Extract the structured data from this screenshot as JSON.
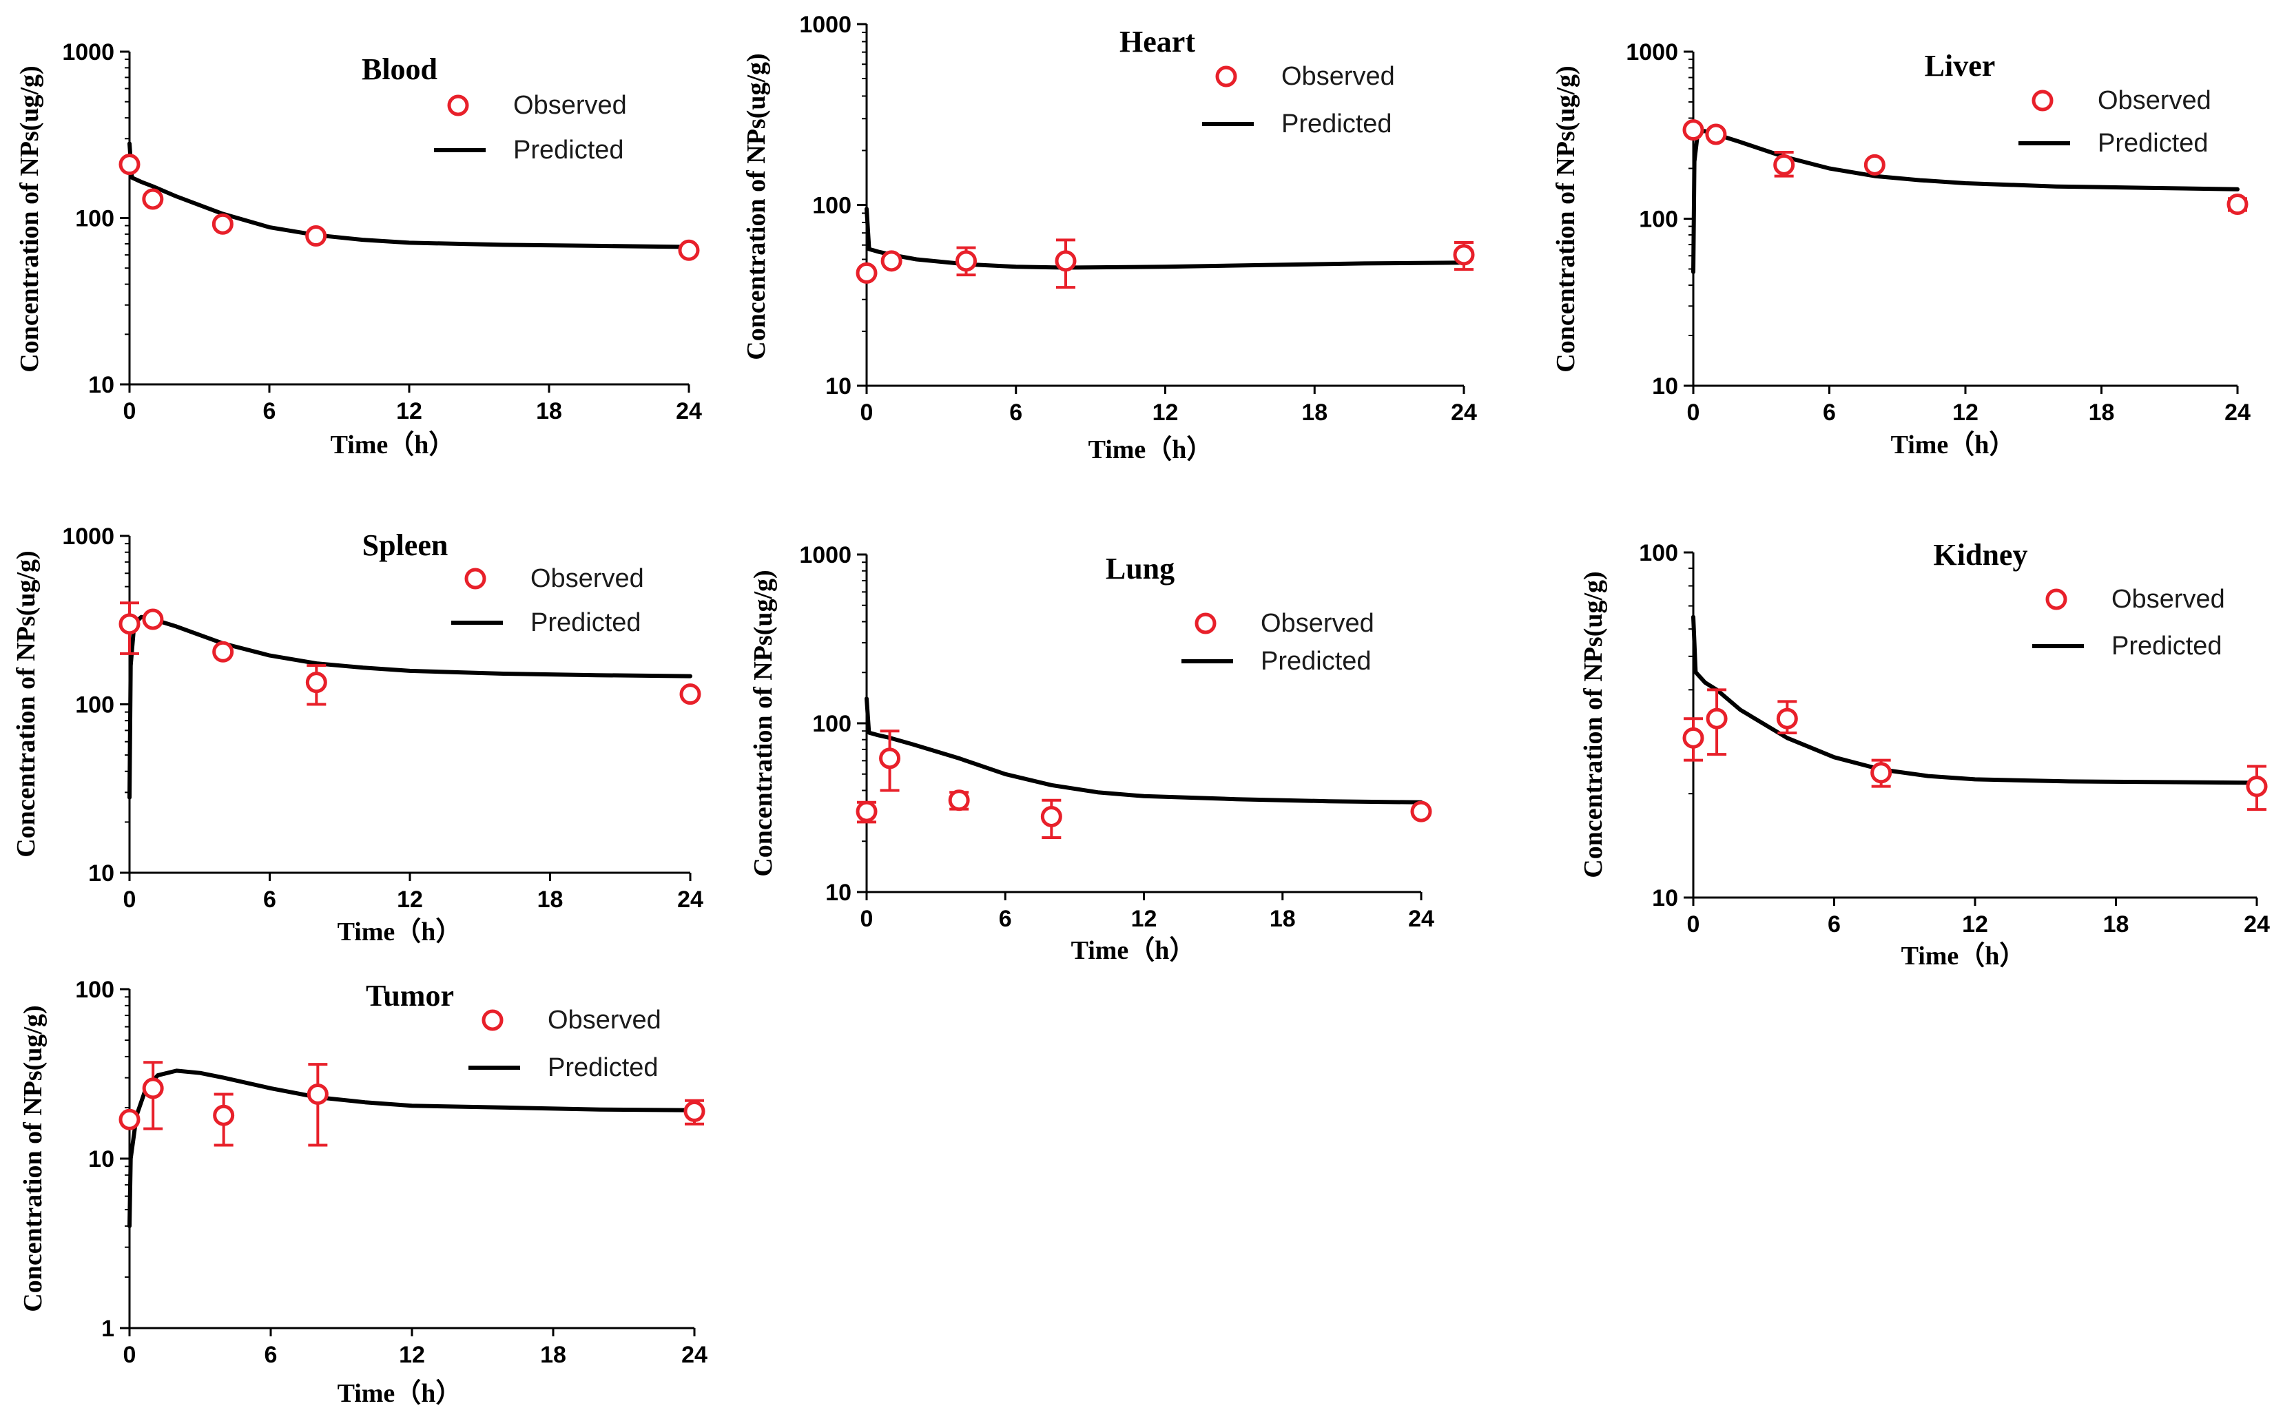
{
  "chart_data": [
    {
      "type": "line",
      "title": "Blood",
      "xlabel": "Time（h）",
      "ylabel": "Concentration of NPs(ug/g)",
      "yscale": "log",
      "xlim": [
        0,
        24
      ],
      "ylim": [
        10,
        1000
      ],
      "xticks": [
        "0",
        "6",
        "12",
        "18",
        "24"
      ],
      "yticks": [
        "10",
        "100",
        "1000"
      ],
      "legend": [
        "Observed",
        "Predicted"
      ],
      "observed": [
        {
          "x": 0,
          "y": 210
        },
        {
          "x": 1,
          "y": 130
        },
        {
          "x": 4,
          "y": 92
        },
        {
          "x": 8,
          "y": 78
        },
        {
          "x": 24,
          "y": 64
        }
      ],
      "predicted": [
        {
          "x": 0,
          "y": 280
        },
        {
          "x": 0.1,
          "y": 175
        },
        {
          "x": 0.5,
          "y": 165
        },
        {
          "x": 1,
          "y": 155
        },
        {
          "x": 2,
          "y": 135
        },
        {
          "x": 4,
          "y": 106
        },
        {
          "x": 6,
          "y": 88
        },
        {
          "x": 8,
          "y": 79
        },
        {
          "x": 10,
          "y": 74
        },
        {
          "x": 12,
          "y": 71
        },
        {
          "x": 16,
          "y": 69
        },
        {
          "x": 20,
          "y": 68
        },
        {
          "x": 24,
          "y": 67
        }
      ]
    },
    {
      "type": "line",
      "title": "Heart",
      "xlabel": "Time（h）",
      "ylabel": "Concentration of NPs(ug/g)",
      "yscale": "log",
      "xlim": [
        0,
        24
      ],
      "ylim": [
        10,
        1000
      ],
      "xticks": [
        "0",
        "6",
        "12",
        "18",
        "24"
      ],
      "yticks": [
        "10",
        "100",
        "1000"
      ],
      "legend": [
        "Observed",
        "Predicted"
      ],
      "observed": [
        {
          "x": 0,
          "y": 42
        },
        {
          "x": 1,
          "y": 49
        },
        {
          "x": 4,
          "y": 49,
          "err": [
            41,
            58
          ]
        },
        {
          "x": 8,
          "y": 49,
          "err": [
            35,
            64
          ]
        },
        {
          "x": 24,
          "y": 53,
          "err": [
            44,
            62
          ]
        }
      ],
      "predicted": [
        {
          "x": 0,
          "y": 95
        },
        {
          "x": 0.1,
          "y": 57
        },
        {
          "x": 0.5,
          "y": 55
        },
        {
          "x": 1,
          "y": 53
        },
        {
          "x": 2,
          "y": 50
        },
        {
          "x": 4,
          "y": 47
        },
        {
          "x": 6,
          "y": 45.5
        },
        {
          "x": 8,
          "y": 45
        },
        {
          "x": 12,
          "y": 45.5
        },
        {
          "x": 16,
          "y": 46.5
        },
        {
          "x": 20,
          "y": 47.5
        },
        {
          "x": 24,
          "y": 48
        }
      ]
    },
    {
      "type": "line",
      "title": "Liver",
      "xlabel": "Time（h）",
      "ylabel": "Concentration of NPs(ug/g)",
      "yscale": "log",
      "xlim": [
        0,
        24
      ],
      "ylim": [
        10,
        1000
      ],
      "xticks": [
        "0",
        "6",
        "12",
        "18",
        "24"
      ],
      "yticks": [
        "10",
        "100",
        "1000"
      ],
      "legend": [
        "Observed",
        "Predicted"
      ],
      "observed": [
        {
          "x": 0,
          "y": 340
        },
        {
          "x": 1,
          "y": 320
        },
        {
          "x": 4,
          "y": 210,
          "err": [
            180,
            250
          ]
        },
        {
          "x": 8,
          "y": 210
        },
        {
          "x": 24,
          "y": 122,
          "err": [
            112,
            132
          ]
        }
      ],
      "predicted": [
        {
          "x": 0,
          "y": 48
        },
        {
          "x": 0.05,
          "y": 220
        },
        {
          "x": 0.2,
          "y": 330
        },
        {
          "x": 0.5,
          "y": 335
        },
        {
          "x": 1,
          "y": 320
        },
        {
          "x": 2,
          "y": 290
        },
        {
          "x": 4,
          "y": 235
        },
        {
          "x": 6,
          "y": 200
        },
        {
          "x": 8,
          "y": 180
        },
        {
          "x": 10,
          "y": 170
        },
        {
          "x": 12,
          "y": 163
        },
        {
          "x": 16,
          "y": 156
        },
        {
          "x": 20,
          "y": 153
        },
        {
          "x": 24,
          "y": 150
        }
      ]
    },
    {
      "type": "line",
      "title": "Spleen",
      "xlabel": "Time（h）",
      "ylabel": "Concentration of NPs(ug/g)",
      "yscale": "log",
      "xlim": [
        0,
        24
      ],
      "ylim": [
        10,
        1000
      ],
      "xticks": [
        "0",
        "6",
        "12",
        "18",
        "24"
      ],
      "yticks": [
        "10",
        "100",
        "1000"
      ],
      "legend": [
        "Observed",
        "Predicted"
      ],
      "observed": [
        {
          "x": 0,
          "y": 300,
          "err": [
            200,
            400
          ]
        },
        {
          "x": 1,
          "y": 320
        },
        {
          "x": 4,
          "y": 205
        },
        {
          "x": 8,
          "y": 135,
          "err": [
            100,
            170
          ]
        },
        {
          "x": 24,
          "y": 115
        }
      ],
      "predicted": [
        {
          "x": 0,
          "y": 28
        },
        {
          "x": 0.05,
          "y": 170
        },
        {
          "x": 0.2,
          "y": 300
        },
        {
          "x": 0.5,
          "y": 330
        },
        {
          "x": 1,
          "y": 320
        },
        {
          "x": 2,
          "y": 290
        },
        {
          "x": 4,
          "y": 230
        },
        {
          "x": 6,
          "y": 195
        },
        {
          "x": 8,
          "y": 175
        },
        {
          "x": 10,
          "y": 165
        },
        {
          "x": 12,
          "y": 158
        },
        {
          "x": 16,
          "y": 152
        },
        {
          "x": 20,
          "y": 149
        },
        {
          "x": 24,
          "y": 147
        }
      ]
    },
    {
      "type": "line",
      "title": "Lung",
      "xlabel": "Time（h）",
      "ylabel": "Concentration of NPs(ug/g)",
      "yscale": "log",
      "xlim": [
        0,
        24
      ],
      "ylim": [
        10,
        1000
      ],
      "xticks": [
        "0",
        "6",
        "12",
        "18",
        "24"
      ],
      "yticks": [
        "10",
        "100",
        "1000"
      ],
      "legend": [
        "Observed",
        "Predicted"
      ],
      "observed": [
        {
          "x": 0,
          "y": 30,
          "err": [
            26,
            34
          ]
        },
        {
          "x": 1,
          "y": 62,
          "err": [
            40,
            90
          ]
        },
        {
          "x": 4,
          "y": 35,
          "err": [
            31,
            39
          ]
        },
        {
          "x": 8,
          "y": 28,
          "err": [
            21,
            35
          ]
        },
        {
          "x": 24,
          "y": 30
        }
      ],
      "predicted": [
        {
          "x": 0,
          "y": 140
        },
        {
          "x": 0.1,
          "y": 88
        },
        {
          "x": 0.5,
          "y": 85
        },
        {
          "x": 1,
          "y": 82
        },
        {
          "x": 2,
          "y": 75
        },
        {
          "x": 4,
          "y": 62
        },
        {
          "x": 6,
          "y": 50
        },
        {
          "x": 8,
          "y": 43
        },
        {
          "x": 10,
          "y": 39
        },
        {
          "x": 12,
          "y": 37
        },
        {
          "x": 16,
          "y": 35.5
        },
        {
          "x": 20,
          "y": 34.5
        },
        {
          "x": 24,
          "y": 34
        }
      ]
    },
    {
      "type": "line",
      "title": "Kidney",
      "xlabel": "Time（h）",
      "ylabel": "Concentration of NPs(ug/g)",
      "yscale": "log",
      "xlim": [
        0,
        24
      ],
      "ylim": [
        10,
        100
      ],
      "xticks": [
        "0",
        "6",
        "12",
        "18",
        "24"
      ],
      "yticks": [
        "10",
        "100"
      ],
      "legend": [
        "Observed",
        "Predicted"
      ],
      "observed": [
        {
          "x": 0,
          "y": 29,
          "err": [
            25,
            33
          ]
        },
        {
          "x": 1,
          "y": 33,
          "err": [
            26,
            40
          ]
        },
        {
          "x": 4,
          "y": 33,
          "err": [
            30,
            37
          ]
        },
        {
          "x": 8,
          "y": 23,
          "err": [
            21,
            25
          ]
        },
        {
          "x": 24,
          "y": 21,
          "err": [
            18,
            24
          ]
        }
      ],
      "predicted": [
        {
          "x": 0,
          "y": 65
        },
        {
          "x": 0.1,
          "y": 45
        },
        {
          "x": 0.5,
          "y": 42
        },
        {
          "x": 1,
          "y": 40
        },
        {
          "x": 2,
          "y": 35
        },
        {
          "x": 4,
          "y": 29
        },
        {
          "x": 6,
          "y": 25.5
        },
        {
          "x": 8,
          "y": 23.5
        },
        {
          "x": 10,
          "y": 22.5
        },
        {
          "x": 12,
          "y": 22
        },
        {
          "x": 16,
          "y": 21.7
        },
        {
          "x": 20,
          "y": 21.6
        },
        {
          "x": 24,
          "y": 21.5
        }
      ]
    },
    {
      "type": "line",
      "title": "Tumor",
      "xlabel": "Time（h）",
      "ylabel": "Concentration of NPs(ug/g)",
      "yscale": "log",
      "xlim": [
        0,
        24
      ],
      "ylim": [
        1,
        100
      ],
      "xticks": [
        "0",
        "6",
        "12",
        "18",
        "24"
      ],
      "yticks": [
        "1",
        "10",
        "100"
      ],
      "legend": [
        "Observed",
        "Predicted"
      ],
      "observed": [
        {
          "x": 0,
          "y": 17
        },
        {
          "x": 1,
          "y": 26,
          "err": [
            15,
            37
          ]
        },
        {
          "x": 4,
          "y": 18,
          "err": [
            12,
            24
          ]
        },
        {
          "x": 8,
          "y": 24,
          "err": [
            12,
            36
          ]
        },
        {
          "x": 24,
          "y": 19,
          "err": [
            16,
            22
          ]
        }
      ],
      "predicted": [
        {
          "x": 0,
          "y": 4
        },
        {
          "x": 0.05,
          "y": 10
        },
        {
          "x": 0.3,
          "y": 18
        },
        {
          "x": 0.7,
          "y": 26
        },
        {
          "x": 1.2,
          "y": 31
        },
        {
          "x": 2,
          "y": 33
        },
        {
          "x": 3,
          "y": 32
        },
        {
          "x": 4,
          "y": 30
        },
        {
          "x": 6,
          "y": 26
        },
        {
          "x": 8,
          "y": 23
        },
        {
          "x": 10,
          "y": 21.5
        },
        {
          "x": 12,
          "y": 20.5
        },
        {
          "x": 16,
          "y": 20
        },
        {
          "x": 20,
          "y": 19.5
        },
        {
          "x": 24,
          "y": 19.3
        }
      ]
    }
  ],
  "colors": {
    "observed": "#e8202a",
    "predicted": "#000000",
    "axis": "#000000"
  }
}
